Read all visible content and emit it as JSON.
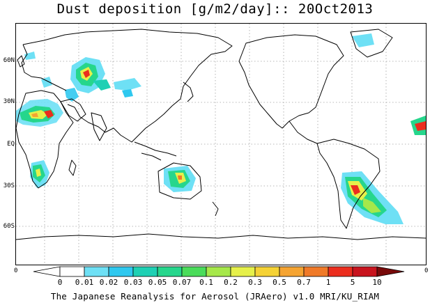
{
  "title": "Dust deposition [g/m2/day]:: 20Oct2013",
  "map": {
    "lat_labels": [
      "60N",
      "30N",
      "EQ",
      "30S",
      "60S"
    ],
    "edge_left_label": "0",
    "edge_right_label": "0"
  },
  "colorbar": {
    "labels": [
      "0",
      "0.01",
      "0.02",
      "0.03",
      "0.05",
      "0.07",
      "0.1",
      "0.2",
      "0.3",
      "0.5",
      "0.7",
      "1",
      "5",
      "10"
    ],
    "colors": [
      "#ffffff",
      "#6ee0f5",
      "#2fc8ef",
      "#1ed0b4",
      "#26d68c",
      "#4adc5a",
      "#a6e84a",
      "#e6f04a",
      "#f5d235",
      "#f5a432",
      "#f07a28",
      "#eb2d1e",
      "#c8141e",
      "#a00a14"
    ],
    "under_color": "#ffffff",
    "over_color": "#780a0a"
  },
  "footer": "The Japanese Reanalysis for Aerosol (JRAero) v1.0 MRI/KU_RIAM"
}
